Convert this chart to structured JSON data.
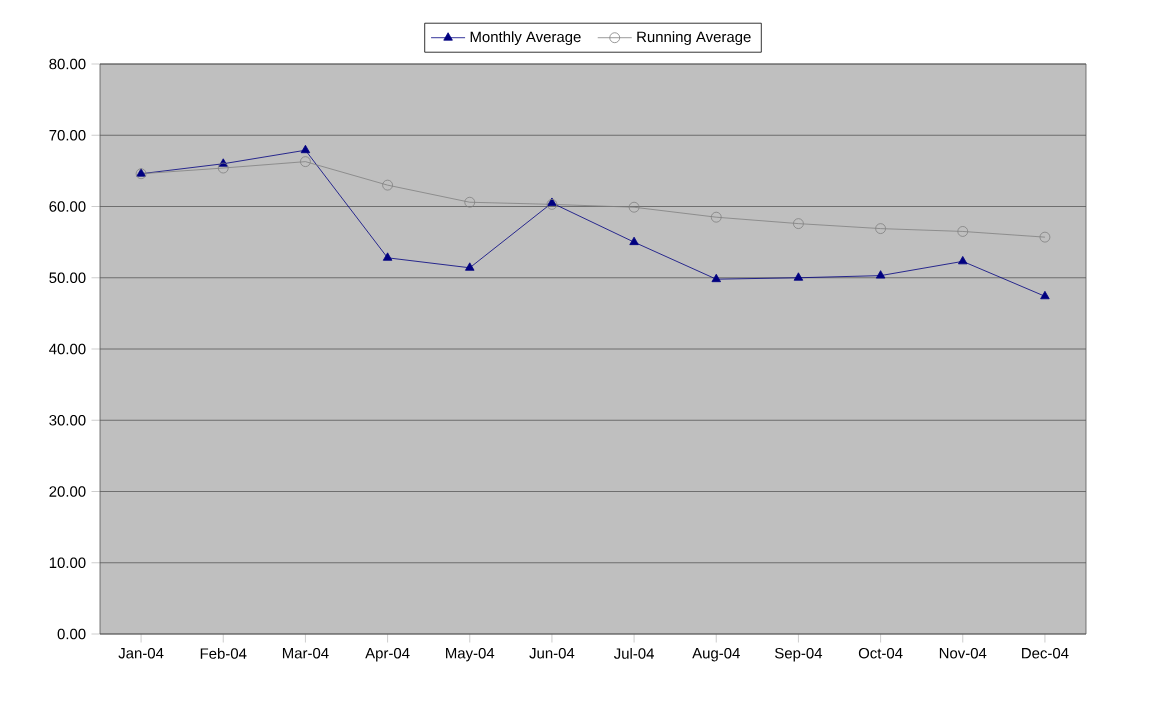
{
  "chart_data": {
    "type": "line",
    "categories": [
      "Jan-04",
      "Feb-04",
      "Mar-04",
      "Apr-04",
      "May-04",
      "Jun-04",
      "Jul-04",
      "Aug-04",
      "Sep-04",
      "Oct-04",
      "Nov-04",
      "Dec-04"
    ],
    "series": [
      {
        "name": "Monthly Average",
        "color": "#000080",
        "marker": "triangle",
        "values": [
          64.6,
          66.0,
          67.9,
          52.8,
          51.4,
          60.5,
          55.0,
          49.8,
          50.0,
          50.3,
          52.3,
          47.4
        ]
      },
      {
        "name": "Running Average",
        "color": "#808080",
        "marker": "circle",
        "values": [
          64.6,
          65.4,
          66.3,
          63.0,
          60.6,
          60.3,
          59.9,
          58.5,
          57.6,
          56.9,
          56.5,
          55.7
        ]
      }
    ],
    "ylim": [
      0,
      80
    ],
    "yticks": [
      {
        "value": 0,
        "label": "0.00"
      },
      {
        "value": 10,
        "label": "10.00"
      },
      {
        "value": 20,
        "label": "20.00"
      },
      {
        "value": 30,
        "label": "30.00"
      },
      {
        "value": 40,
        "label": "40.00"
      },
      {
        "value": 50,
        "label": "50.00"
      },
      {
        "value": 60,
        "label": "60.00"
      },
      {
        "value": 70,
        "label": "70.00"
      },
      {
        "value": 80,
        "label": "80.00"
      }
    ],
    "grid": "y",
    "legend": "top",
    "line_style": "solid"
  }
}
